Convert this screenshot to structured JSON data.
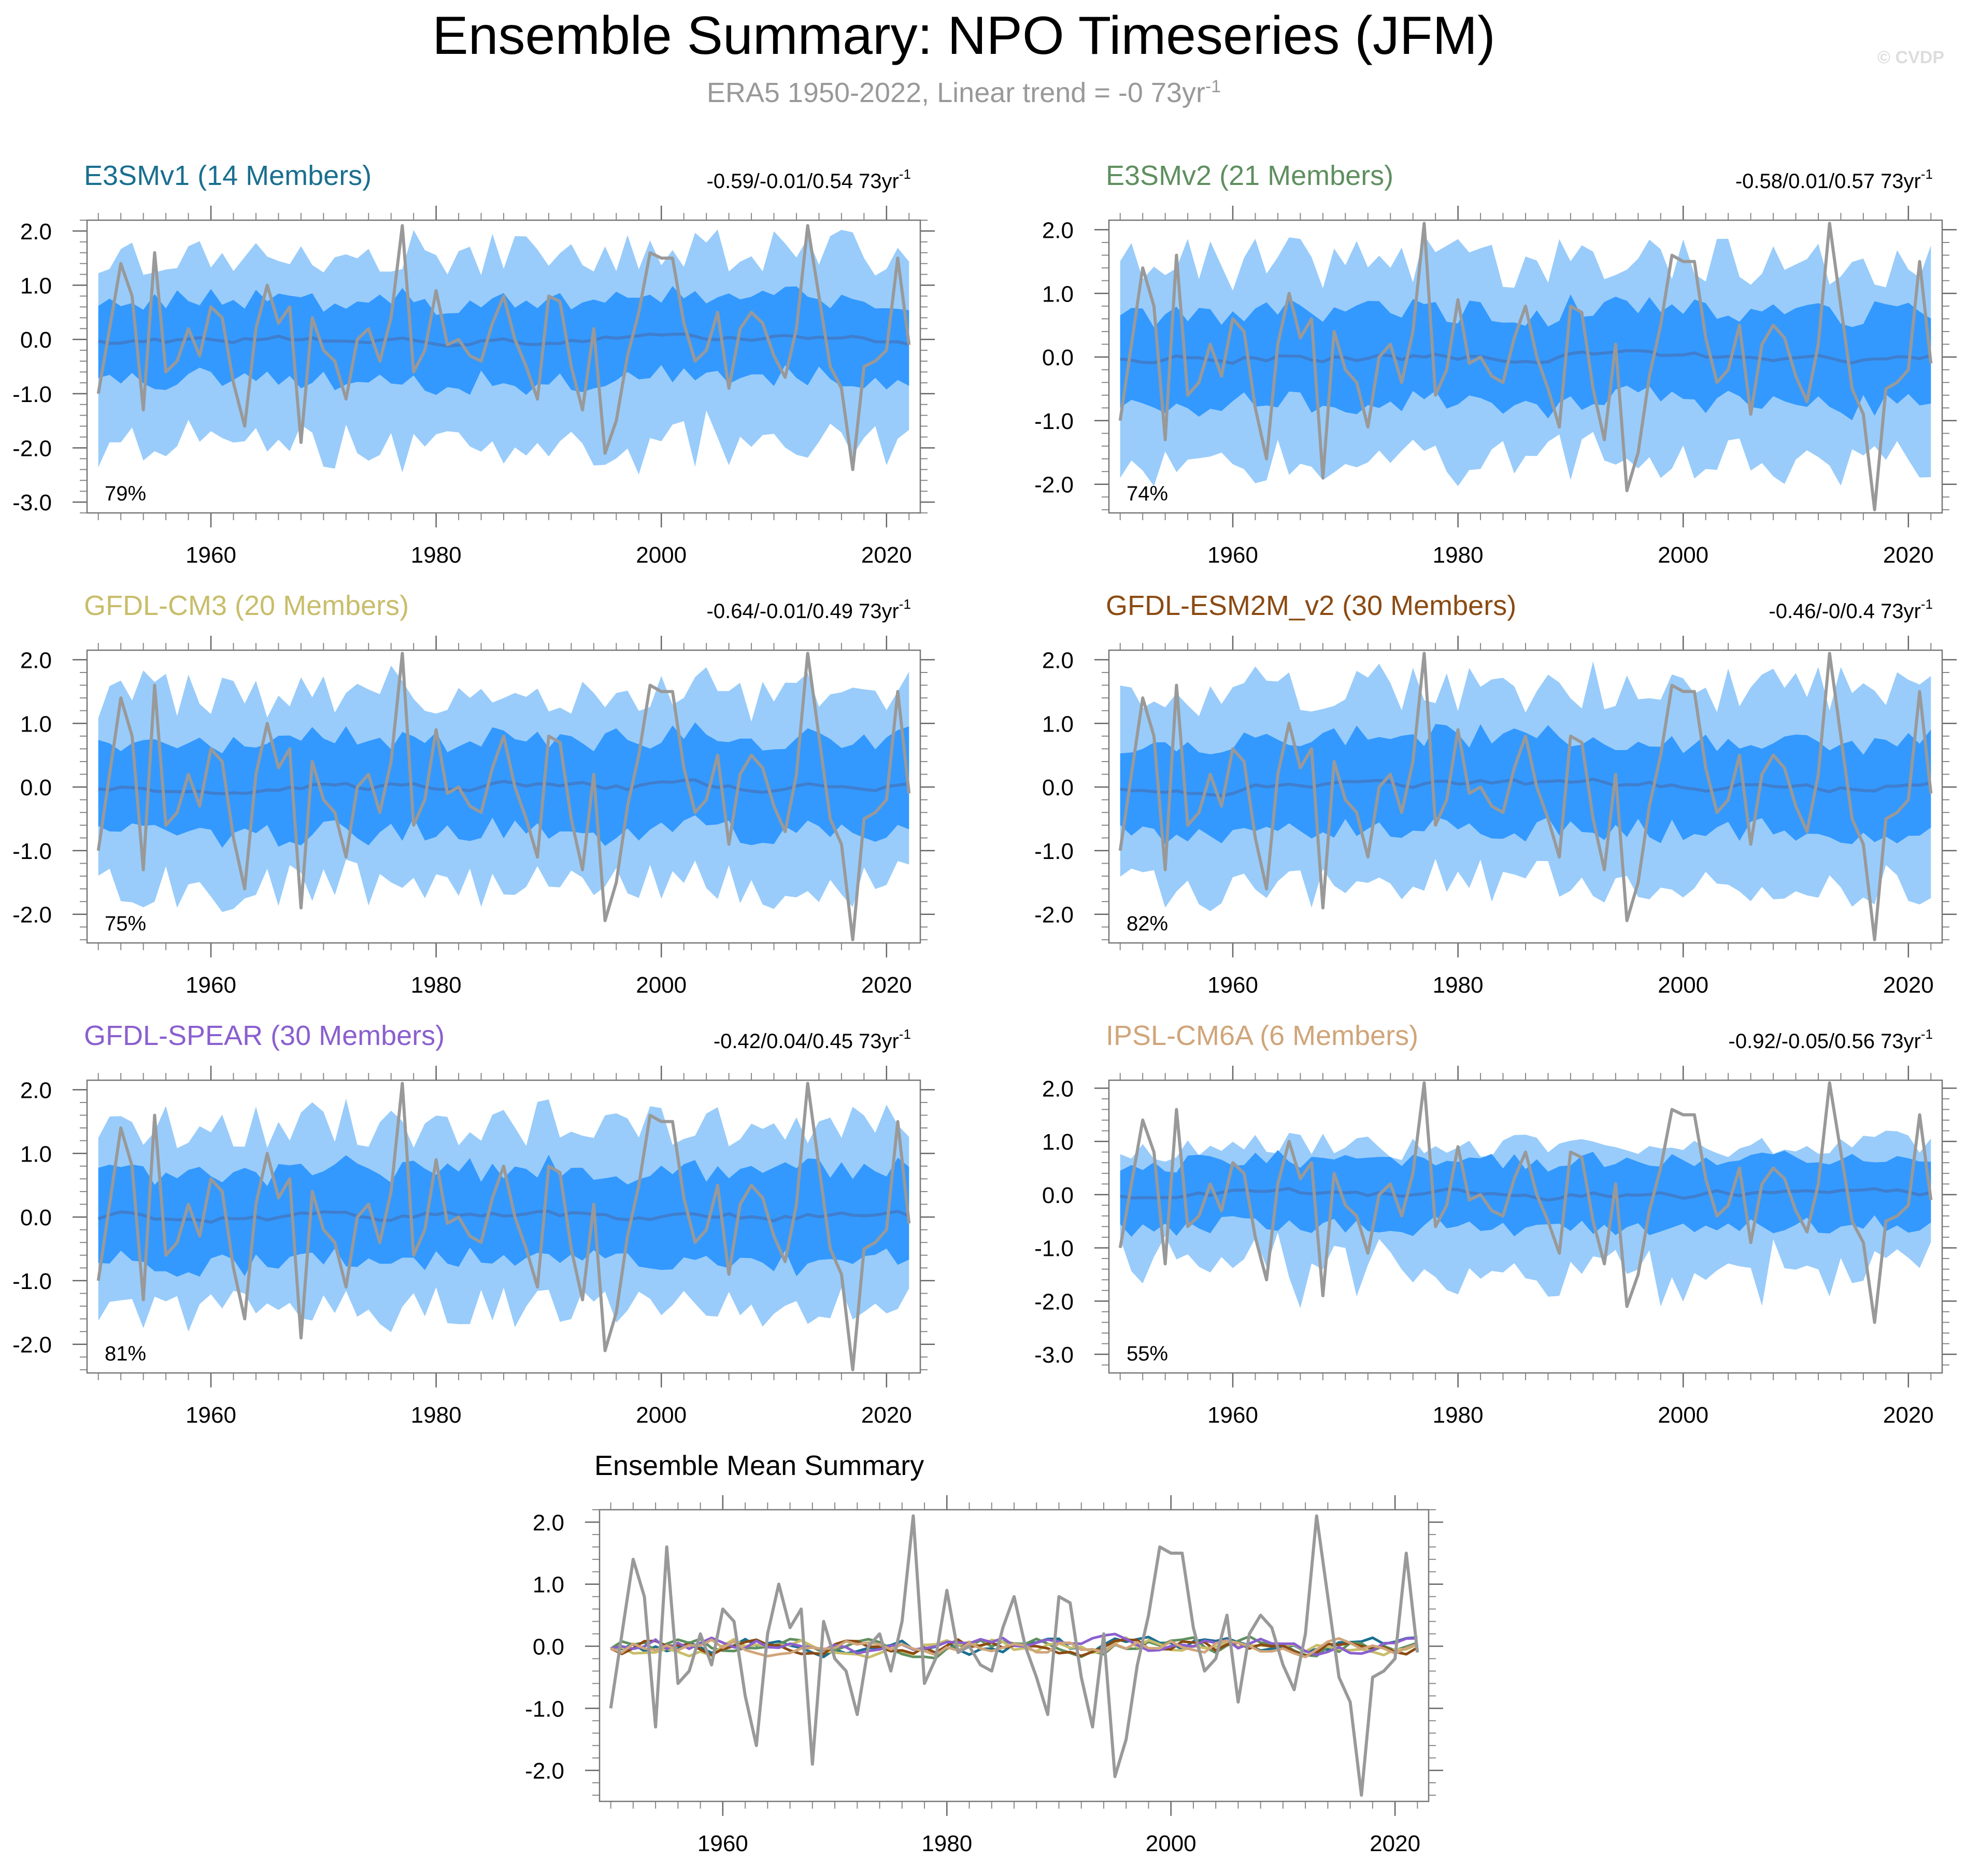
{
  "figure": {
    "title": "Ensemble Summary: NPO Timeseries (JFM)",
    "subtitle_main": "ERA5 1950-2022, Linear trend = -0 73yr",
    "subtitle_sup": "-1",
    "watermark": "© CVDP",
    "trend_unit_suffix": "yr",
    "trend_unit_sup": "-1"
  },
  "colors": {
    "obs": "#999999",
    "band_outer": "#99ccfa",
    "band_inner": "#3399ff",
    "ens_mean": "#3f7fcf"
  },
  "chart_data": {
    "type": "line",
    "x_start": 1950,
    "x_end": 2022,
    "xlim": [
      1949,
      2023
    ],
    "xticks": [
      1960,
      1980,
      2000,
      2020
    ],
    "observed": {
      "name": "ERA5",
      "years": [
        1950,
        2022
      ],
      "values": [
        -1.0,
        0.2,
        1.4,
        0.8,
        -1.3,
        1.6,
        -0.6,
        -0.4,
        0.2,
        -0.3,
        0.6,
        0.4,
        -0.8,
        -1.6,
        0.2,
        1.0,
        0.3,
        0.6,
        -1.9,
        0.4,
        -0.2,
        -0.4,
        -1.1,
        0.0,
        0.2,
        -0.4,
        0.4,
        2.1,
        -0.6,
        -0.2,
        0.9,
        -0.1,
        0.0,
        -0.3,
        -0.4,
        0.3,
        0.8,
        0.0,
        -0.5,
        -1.1,
        0.8,
        0.7,
        -0.5,
        -1.3,
        0.2,
        -2.1,
        -1.5,
        -0.3,
        0.5,
        1.6,
        1.5,
        1.5,
        0.3,
        -0.4,
        -0.2,
        0.5,
        -0.9,
        0.2,
        0.5,
        0.3,
        -0.3,
        -0.7,
        0.2,
        2.1,
        0.8,
        -0.5,
        -0.9,
        -2.4,
        -0.5,
        -0.4,
        -0.2,
        1.5,
        -0.1
      ]
    },
    "panels": [
      {
        "model": "E3SMv1",
        "label": "E3SMv1 (14 Members)",
        "color": "#1a6f8f",
        "trend": "-0.59/-0.01/0.54 73yr",
        "pct": "79%",
        "ylim": [
          -3.2,
          2.2
        ],
        "yticks": [
          2.0,
          1.0,
          0.0,
          -1.0,
          -2.0,
          -3.0
        ],
        "seed": 11,
        "mean_offset": 0.0,
        "inner": 0.72,
        "outer": 1.7,
        "outer_low_extra": 0.5,
        "member_count": 14
      },
      {
        "model": "E3SMv2",
        "label": "E3SMv2 (21 Members)",
        "color": "#5f8f5f",
        "trend": "-0.58/0.01/0.57 73yr",
        "pct": "74%",
        "ylim": [
          -2.45,
          2.15
        ],
        "yticks": [
          2.0,
          1.0,
          0.0,
          -1.0,
          -2.0
        ],
        "seed": 23,
        "mean_offset": 0.0,
        "inner": 0.72,
        "outer": 1.6,
        "outer_low_extra": 0.1,
        "member_count": 21
      },
      {
        "model": "GFDL-CM3",
        "label": "GFDL-CM3 (20 Members)",
        "color": "#c8bd6a",
        "trend": "-0.64/-0.01/0.49 73yr",
        "pct": "75%",
        "ylim": [
          -2.45,
          2.15
        ],
        "yticks": [
          2.0,
          1.0,
          0.0,
          -1.0,
          -2.0
        ],
        "seed": 37,
        "mean_offset": 0.0,
        "inner": 0.7,
        "outer": 1.55,
        "outer_low_extra": 0.05,
        "member_count": 20
      },
      {
        "model": "GFDL-ESM2M_v2",
        "label": "GFDL-ESM2M_v2 (30 Members)",
        "color": "#8b4a12",
        "trend": "-0.46/-0/0.4 73yr",
        "pct": "82%",
        "ylim": [
          -2.45,
          2.15
        ],
        "yticks": [
          2.0,
          1.0,
          0.0,
          -1.0,
          -2.0
        ],
        "seed": 53,
        "mean_offset": 0.0,
        "inner": 0.7,
        "outer": 1.6,
        "outer_low_extra": 0.0,
        "member_count": 30
      },
      {
        "model": "GFDL-SPEAR",
        "label": "GFDL-SPEAR (30 Members)",
        "color": "#8a5fcf",
        "trend": "-0.42/0.04/0.45 73yr",
        "pct": "81%",
        "ylim": [
          -2.45,
          2.15
        ],
        "yticks": [
          2.0,
          1.0,
          0.0,
          -1.0,
          -2.0
        ],
        "seed": 71,
        "mean_offset": 0.0,
        "inner": 0.7,
        "outer": 1.5,
        "outer_low_extra": 0.0,
        "member_count": 30
      },
      {
        "model": "IPSL-CM6A",
        "label": "IPSL-CM6A (6 Members)",
        "color": "#d0a57a",
        "trend": "-0.92/-0.05/0.56 73yr",
        "pct": "55%",
        "ylim": [
          -3.35,
          2.15
        ],
        "yticks": [
          2.0,
          1.0,
          0.0,
          -1.0,
          -2.0,
          -3.0
        ],
        "seed": 97,
        "mean_offset": 0.0,
        "inner": 0.6,
        "outer": 0.95,
        "outer_low_extra": 0.9,
        "member_count": 6
      }
    ],
    "summary": {
      "title": "Ensemble Mean Summary",
      "ylim": [
        -2.5,
        2.2
      ],
      "yticks": [
        2.0,
        1.0,
        0.0,
        -1.0,
        -2.0
      ],
      "series": [
        {
          "name": "ERA5",
          "color": "#999999"
        },
        {
          "name": "E3SMv1",
          "color": "#1a6f8f"
        },
        {
          "name": "E3SMv2",
          "color": "#5f8f5f"
        },
        {
          "name": "GFDL-CM3",
          "color": "#c8bd6a"
        },
        {
          "name": "GFDL-ESM2M_v2",
          "color": "#8b4a12"
        },
        {
          "name": "GFDL-SPEAR",
          "color": "#8a5fcf"
        },
        {
          "name": "IPSL-CM6A",
          "color": "#d0a57a"
        }
      ]
    }
  }
}
